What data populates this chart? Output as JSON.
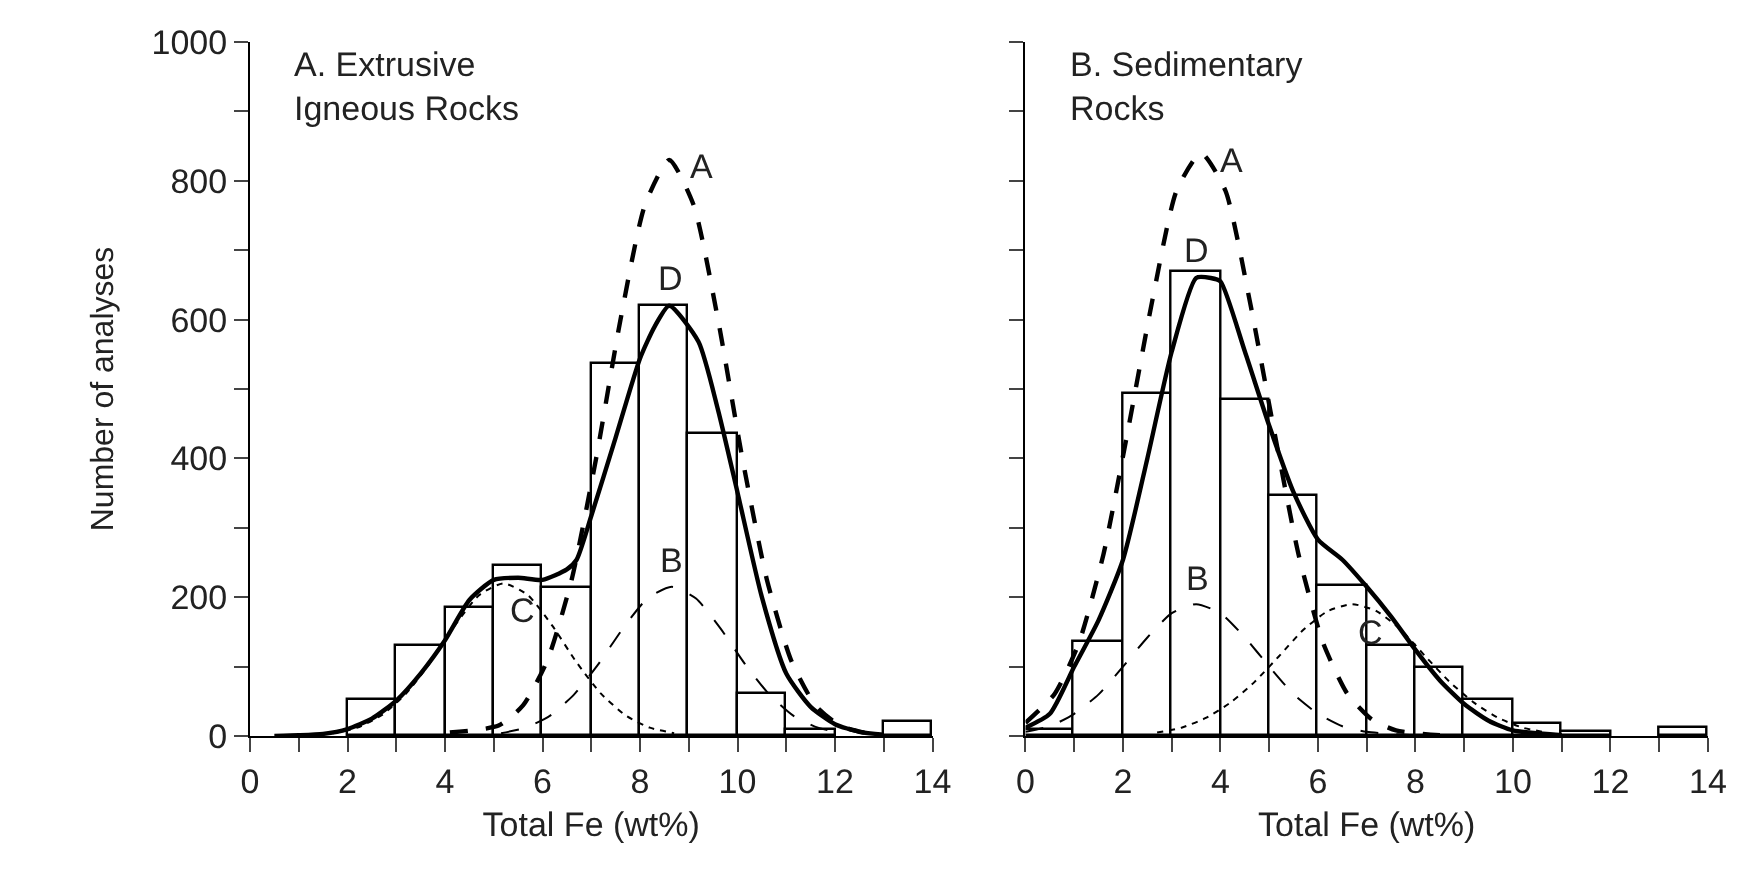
{
  "chart_data": [
    {
      "type": "histogram",
      "title": "A. Extrusive\nIgneous Rocks",
      "xlabel": "Total Fe (wt%)",
      "ylabel": "Number of analyses",
      "bins": [
        0,
        1,
        2,
        3,
        4,
        5,
        6,
        7,
        8,
        9,
        10,
        11,
        12,
        13,
        14
      ],
      "values": [
        0,
        0,
        51,
        131,
        184,
        244,
        214,
        537,
        619,
        436,
        60,
        10,
        0,
        20
      ],
      "color": "#ffffff",
      "series": [
        {
          "name": "A",
          "type": "line",
          "line_style": "dashed",
          "color": "#000000",
          "x": [
            4.1,
            5.1,
            5.6,
            6.1,
            6.6,
            7.1,
            7.6,
            8.1,
            8.6,
            9.1,
            9.6,
            10.1,
            10.6,
            11.1,
            11.6,
            12.1,
            12.6
          ],
          "values": [
            5,
            15,
            44,
            109,
            226,
            400,
            600,
            765,
            830,
            765,
            600,
            400,
            226,
            109,
            44,
            15,
            5
          ]
        },
        {
          "name": "B",
          "type": "line",
          "line_style": "dashed",
          "color": "#000000",
          "x": [
            5.15,
            5.65,
            6.15,
            6.65,
            7.15,
            7.65,
            8.15,
            8.65,
            9.15,
            9.65,
            10.15,
            10.65,
            11.15,
            11.65,
            12.15
          ],
          "values": [
            4,
            12,
            29,
            60,
            104,
            155,
            198,
            215,
            198,
            155,
            104,
            60,
            29,
            12,
            4
          ]
        },
        {
          "name": "C",
          "type": "line",
          "line_style": "dotted",
          "color": "#000000",
          "x": [
            1.7,
            2.2,
            2.7,
            3.2,
            3.7,
            4.2,
            4.7,
            5.2,
            5.7,
            6.2,
            6.7,
            7.2,
            7.7,
            8.2,
            8.7
          ],
          "values": [
            4,
            12,
            30,
            61,
            106,
            159,
            203,
            220,
            203,
            159,
            106,
            61,
            30,
            12,
            4
          ]
        },
        {
          "name": "D",
          "type": "line",
          "line_style": "solid",
          "color": "#000000",
          "x": [
            0.5,
            1,
            1.5,
            2,
            2.5,
            3,
            3.5,
            4,
            4.5,
            5,
            5.5,
            6,
            6.5,
            6.7,
            7,
            7.5,
            8,
            8.3,
            8.6,
            9.2,
            9.6,
            10,
            10.5,
            11,
            11.5,
            12,
            12.5,
            13
          ],
          "values": [
            0,
            1,
            3,
            10,
            25,
            51,
            90,
            138,
            196,
            225,
            228,
            225,
            240,
            254,
            317,
            430,
            544,
            590,
            620,
            568,
            470,
            351,
            200,
            90,
            42,
            17,
            6,
            2
          ]
        }
      ],
      "xlim": [
        0,
        14
      ],
      "xticks": [
        0,
        {
          "value": 1,
          "label": null
        },
        2,
        {
          "value": 3,
          "label": null
        },
        4,
        {
          "value": 5,
          "label": null
        },
        6,
        {
          "value": 7,
          "label": null
        },
        8,
        {
          "value": 9,
          "label": null
        },
        10,
        {
          "value": 11,
          "label": null
        },
        12,
        {
          "value": 13,
          "label": null
        },
        14
      ],
      "ylim": [
        0,
        1000
      ],
      "yticks": [
        0,
        {
          "value": 100,
          "label": null
        },
        200,
        {
          "value": 300,
          "label": null
        },
        400,
        {
          "value": 500,
          "label": null
        },
        600,
        {
          "value": 700,
          "label": null
        },
        800,
        {
          "value": 900,
          "label": null
        },
        1000
      ]
    },
    {
      "type": "histogram",
      "title": "B. Sedimentary\nRocks",
      "xlabel": "Total Fe (wt%)",
      "bins": [
        0,
        1,
        2,
        3,
        4,
        5,
        6,
        7,
        8,
        9,
        10,
        11,
        12,
        13,
        14
      ],
      "values": [
        8,
        136,
        492,
        668,
        483,
        345,
        215,
        131,
        98,
        51,
        17,
        7,
        0,
        11
      ],
      "color": "#ffffff",
      "series": [
        {
          "name": "A",
          "type": "line",
          "line_style": "dashed",
          "color": "#000000",
          "x": [
            0,
            0.6,
            1.1,
            1.6,
            2.1,
            2.6,
            3.1,
            3.6,
            4.1,
            4.6,
            5.1,
            5.6,
            6.1,
            6.6,
            7.1,
            7.6,
            8.5
          ],
          "values": [
            19,
            61,
            135,
            262,
            440,
            627,
            786,
            840,
            786,
            627,
            440,
            262,
            135,
            61,
            24,
            8,
            1
          ]
        },
        {
          "name": "B",
          "type": "line",
          "line_style": "dashed",
          "color": "#000000",
          "x": [
            0,
            0.5,
            1,
            1.5,
            2,
            2.5,
            3,
            3.5,
            4,
            4.5,
            5,
            5.5,
            6,
            6.5,
            7,
            8
          ],
          "values": [
            6,
            14,
            32,
            60,
            100,
            142,
            177,
            190,
            177,
            142,
            100,
            60,
            32,
            14,
            6,
            1
          ]
        },
        {
          "name": "C",
          "type": "line",
          "line_style": "dotted",
          "color": "#000000",
          "x": [
            2.7,
            3.2,
            3.7,
            4.2,
            4.7,
            5.2,
            5.7,
            6.2,
            6.7,
            7.2,
            7.7,
            8.2,
            8.7,
            9.2,
            9.7,
            10.2,
            10.7
          ],
          "values": [
            5,
            12,
            26,
            48,
            78,
            115,
            153,
            180,
            190,
            180,
            153,
            115,
            78,
            48,
            26,
            12,
            5
          ]
        },
        {
          "name": "D",
          "type": "line",
          "line_style": "solid",
          "color": "#000000",
          "x": [
            0,
            0.5,
            1,
            1.5,
            2,
            2.5,
            3,
            3.5,
            3.8,
            4,
            4.5,
            5,
            5.5,
            6,
            6.5,
            7,
            7.5,
            8,
            8.5,
            9,
            9.5,
            10,
            11
          ],
          "values": [
            12,
            32,
            100,
            167,
            254,
            400,
            554,
            660,
            660,
            655,
            554,
            447,
            351,
            283,
            254,
            215,
            172,
            124,
            80,
            46,
            22,
            8,
            1
          ]
        }
      ],
      "xlim": [
        0,
        14
      ],
      "xticks": [
        0,
        {
          "value": 1,
          "label": null
        },
        2,
        {
          "value": 3,
          "label": null
        },
        4,
        {
          "value": 5,
          "label": null
        },
        6,
        {
          "value": 7,
          "label": null
        },
        8,
        {
          "value": 9,
          "label": null
        },
        10,
        {
          "value": 11,
          "label": null
        },
        12,
        {
          "value": 13,
          "label": null
        },
        14
      ],
      "ylim": [
        0,
        1000
      ],
      "yticks": [
        0,
        {
          "value": 100,
          "label": null
        },
        200,
        {
          "value": 300,
          "label": null
        },
        400,
        {
          "value": 500,
          "label": null
        },
        600,
        {
          "value": 700,
          "label": null
        },
        800,
        {
          "value": 900,
          "label": null
        },
        1000
      ],
      "tick_labels": "x"
    }
  ]
}
